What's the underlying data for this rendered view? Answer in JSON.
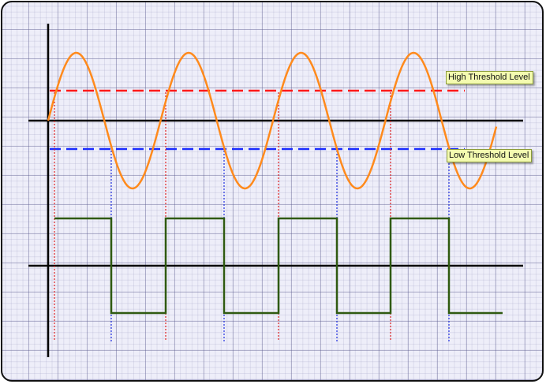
{
  "labels": {
    "high_threshold": "High Threshold Level",
    "low_threshold": "Low Threshold Level"
  },
  "colors": {
    "sine_wave": "#ff8a1c",
    "high_threshold": "#ff1a1a",
    "low_threshold": "#1a2cff",
    "square_wave": "#2f5a10",
    "axes": "#000000",
    "rising_markers": "#e02020",
    "falling_markers": "#2030e0"
  },
  "waveform": {
    "input_cycles": 4,
    "threshold_high_fraction": 0.45,
    "threshold_low_fraction": -0.45,
    "output_states": [
      "high",
      "low",
      "high",
      "low",
      "high",
      "low",
      "high",
      "low"
    ]
  }
}
